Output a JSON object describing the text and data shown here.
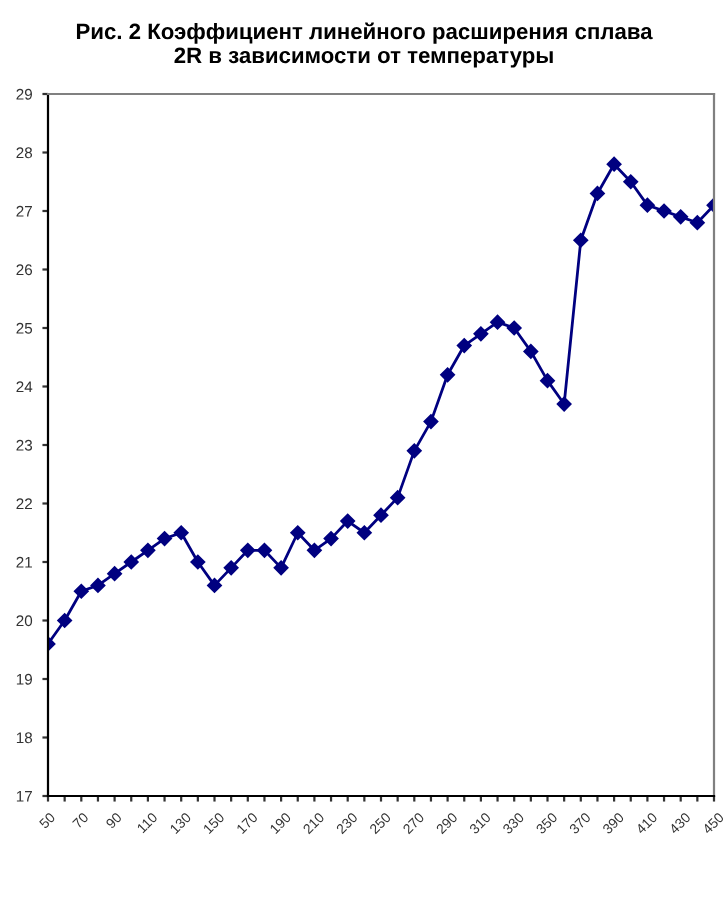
{
  "chart_data": {
    "type": "line",
    "title": "Рис. 2 Коэффициент линейного расширения сплава\n2R в зависимости от температуры",
    "categories": [
      "50",
      null,
      "70",
      null,
      "90",
      null,
      "110",
      null,
      "130",
      null,
      "150",
      null,
      "170",
      null,
      "190",
      null,
      "210",
      null,
      "230",
      null,
      "250",
      null,
      "270",
      null,
      "290",
      null,
      "310",
      null,
      "330",
      null,
      "350",
      null,
      "370",
      null,
      "390",
      null,
      "410",
      null,
      "430",
      null,
      "450"
    ],
    "series": [
      {
        "color": "#000080",
        "values": [
          19.6,
          20.0,
          20.5,
          20.6,
          20.8,
          21.0,
          21.2,
          21.4,
          21.5,
          21.0,
          20.6,
          20.9,
          21.2,
          21.2,
          20.9,
          21.5,
          21.2,
          21.4,
          21.7,
          21.5,
          21.8,
          22.1,
          22.9,
          23.4,
          24.2,
          24.7,
          24.9,
          25.1,
          25.0,
          24.6,
          24.1,
          23.7,
          26.5,
          27.3,
          27.8,
          27.5,
          27.1,
          27.0,
          26.9,
          26.8,
          27.1
        ]
      }
    ],
    "ylim": [
      17,
      29
    ],
    "yticks": [
      17,
      18,
      19,
      20,
      21,
      22,
      23,
      24,
      25,
      26,
      27,
      28,
      29
    ],
    "grid": false,
    "marker": "diamond",
    "line_style": "solid",
    "legend": false
  }
}
